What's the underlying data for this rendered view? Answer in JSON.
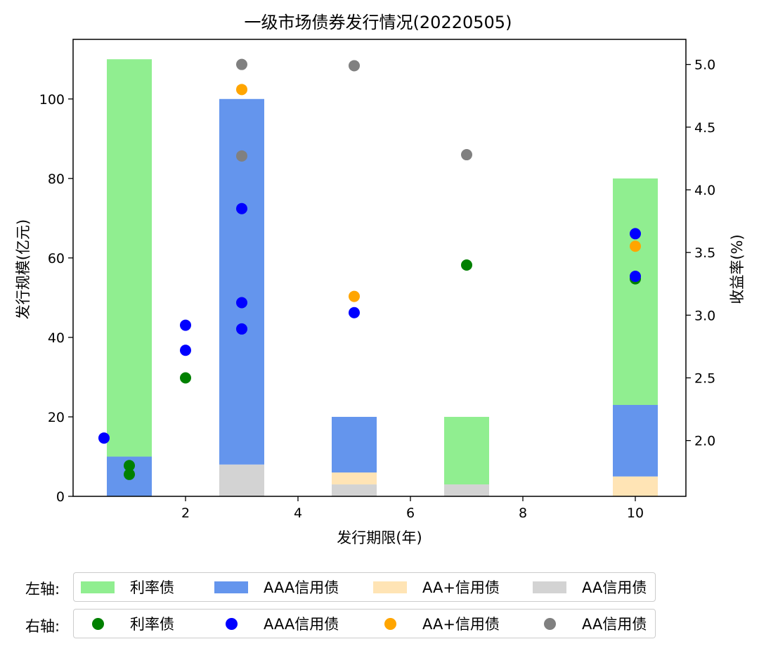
{
  "colors": {
    "rate_bar": "#90ee90",
    "aaa_bar": "#6495ed",
    "aaplus_bar": "#ffe4b5",
    "aa_bar": "#d3d3d3",
    "rate_dot": "#008000",
    "aaa_dot": "#0000ff",
    "aaplus_dot": "#ffa500",
    "aa_dot": "#808080"
  },
  "legend": {
    "left_caption": "左轴:",
    "right_caption": "右轴:",
    "items": [
      "利率债",
      "AAA信用债",
      "AA+信用债",
      "AA信用债"
    ]
  },
  "chart_data": {
    "type": "bar",
    "title": "一级市场债券发行情况(20220505)",
    "xlabel": "发行期限(年)",
    "ylabel": "发行规模(亿元)",
    "y2label": "收益率(%)",
    "xlim": [
      0,
      10.9
    ],
    "ylim": [
      0,
      115
    ],
    "y2lim": [
      1.555,
      5.2
    ],
    "xticks": [
      2,
      4,
      6,
      8,
      10
    ],
    "yticks": [
      0,
      20,
      40,
      60,
      80,
      100
    ],
    "y2ticks": [
      2.0,
      2.5,
      3.0,
      3.5,
      4.0,
      4.5,
      5.0
    ],
    "y2tick_labels": [
      "2.0",
      "2.5",
      "3.0",
      "3.5",
      "4.0",
      "4.5",
      "5.0"
    ],
    "bar_width": 0.8,
    "bar_categories": [
      1,
      3,
      5,
      7,
      10
    ],
    "bar_series": [
      {
        "name": "AA信用债",
        "values": [
          0,
          8,
          3,
          3,
          0
        ]
      },
      {
        "name": "AA+信用债",
        "values": [
          0,
          0,
          3,
          0,
          5
        ]
      },
      {
        "name": "AAA信用债",
        "values": [
          10,
          92,
          14,
          0,
          18
        ]
      },
      {
        "name": "利率债",
        "values": [
          100,
          0,
          0,
          17,
          57
        ]
      }
    ],
    "scatter_series": [
      {
        "name": "利率债",
        "points": [
          [
            1,
            1.8
          ],
          [
            1,
            1.73
          ],
          [
            2,
            2.5
          ],
          [
            7,
            3.4
          ],
          [
            10,
            3.29
          ]
        ]
      },
      {
        "name": "AAA信用债",
        "points": [
          [
            0.55,
            2.02
          ],
          [
            2,
            2.92
          ],
          [
            2,
            2.72
          ],
          [
            3,
            3.85
          ],
          [
            3,
            3.1
          ],
          [
            3,
            2.89
          ],
          [
            5,
            3.02
          ],
          [
            10,
            3.65
          ],
          [
            10,
            3.31
          ]
        ]
      },
      {
        "name": "AA+信用债",
        "points": [
          [
            3,
            4.8
          ],
          [
            5,
            3.15
          ],
          [
            10,
            3.55
          ]
        ]
      },
      {
        "name": "AA信用债",
        "points": [
          [
            3,
            5.0
          ],
          [
            3,
            4.27
          ],
          [
            5,
            4.99
          ],
          [
            7,
            4.28
          ]
        ]
      }
    ]
  }
}
